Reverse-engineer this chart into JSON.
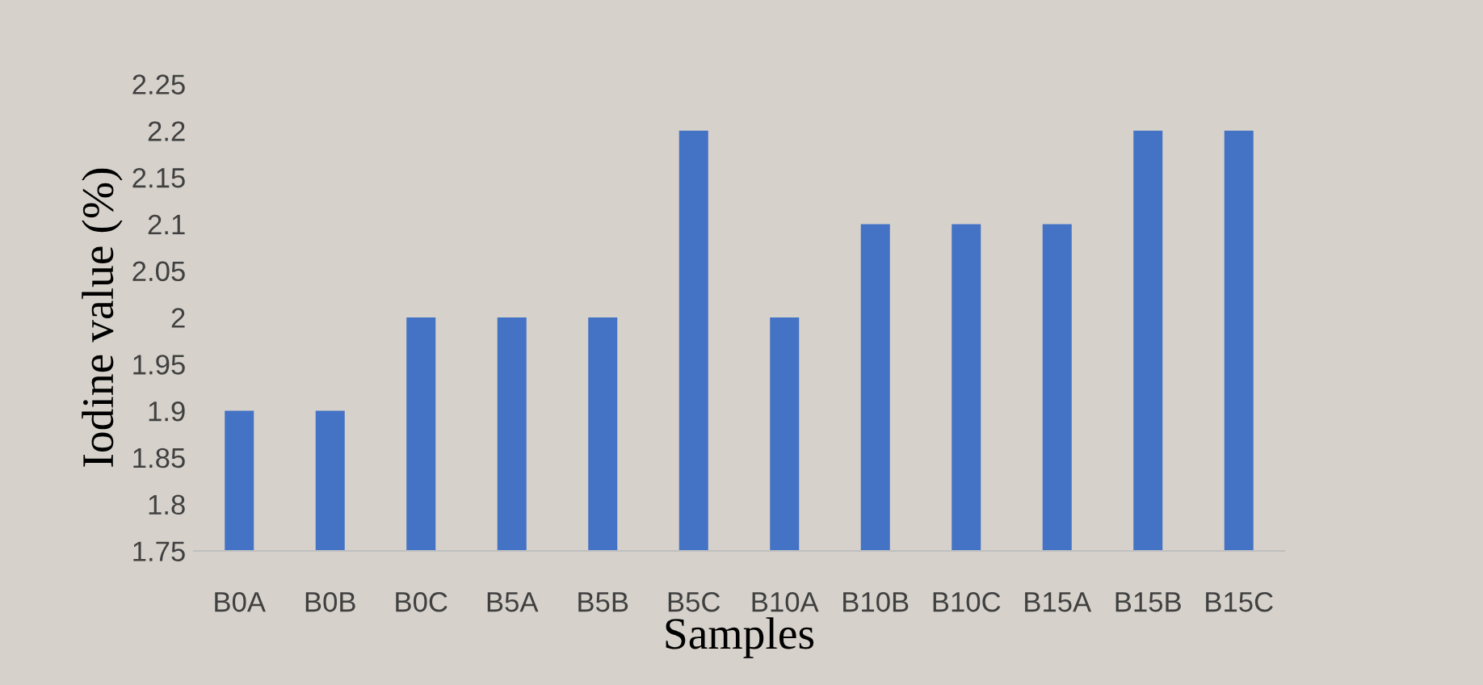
{
  "chart_data": {
    "type": "bar",
    "xlabel": "Samples",
    "ylabel": "Iodine value (%)",
    "categories": [
      "B0A",
      "B0B",
      "B0C",
      "B5A",
      "B5B",
      "B5C",
      "B10A",
      "B10B",
      "B10C",
      "B15A",
      "B15B",
      "B15C"
    ],
    "values": [
      1.9,
      1.9,
      2,
      2,
      2,
      2.2,
      2,
      2.1,
      2.1,
      2.1,
      2.2,
      2.2
    ],
    "color": "#4472c4",
    "ylim": [
      1.75,
      2.25
    ],
    "yticks": [
      1.75,
      1.8,
      1.85,
      1.9,
      1.95,
      2,
      2.05,
      2.1,
      2.15,
      2.2,
      2.25
    ],
    "grid": false,
    "legend": false
  }
}
